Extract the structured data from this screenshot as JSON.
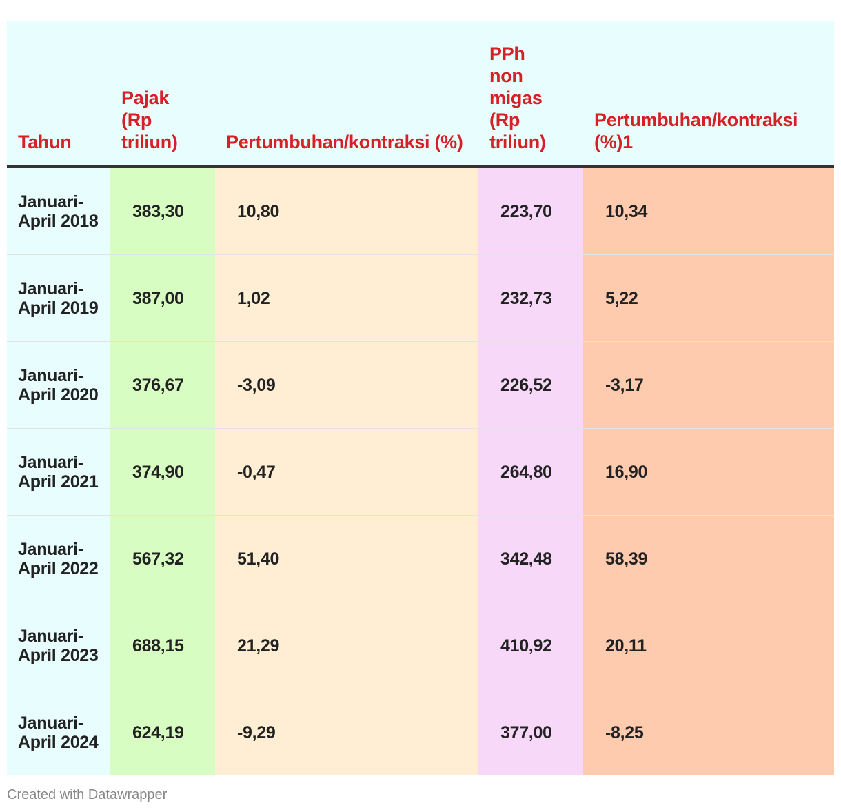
{
  "chart_data": {
    "type": "table",
    "columns": [
      "Tahun",
      "Pajak (Rp triliun)",
      "Pertumbuhan/kontraksi (%)",
      "PPh non migas (Rp triliun)",
      "Pertumbuhan/kontraksi (%)1"
    ],
    "rows": [
      [
        "Januari-April 2018",
        "383,30",
        "10,80",
        "223,70",
        "10,34"
      ],
      [
        "Januari-April 2019",
        "387,00",
        "1,02",
        "232,73",
        "5,22"
      ],
      [
        "Januari-April 2020",
        "376,67",
        "-3,09",
        "226,52",
        "-3,17"
      ],
      [
        "Januari-April 2021",
        "374,90",
        "-0,47",
        "264,80",
        "16,90"
      ],
      [
        "Januari-April 2022",
        "567,32",
        "51,40",
        "342,48",
        "58,39"
      ],
      [
        "Januari-April 2023",
        "688,15",
        "21,29",
        "410,92",
        "20,11"
      ],
      [
        "Januari-April 2024",
        "624,19",
        "-9,29",
        "377,00",
        "-8,25"
      ]
    ],
    "column_colors": [
      "#e8fdfd",
      "#d7fdc2",
      "#ffeed3",
      "#f7d8f9",
      "#fecbae"
    ],
    "header_color": "#d52026"
  },
  "footer": {
    "credit": "Created with Datawrapper"
  }
}
